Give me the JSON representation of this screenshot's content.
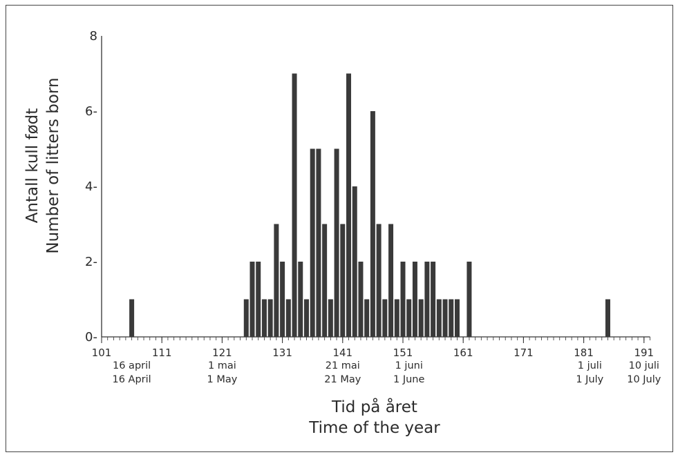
{
  "chart_data": {
    "type": "bar",
    "ylabel_lines": [
      "Antall kull født",
      "Number of litters born"
    ],
    "xlabel_lines": [
      "Tid på året",
      "Time of the year"
    ],
    "xlim": [
      101,
      192
    ],
    "ylim": [
      0,
      8
    ],
    "yticks": [
      "0-",
      "2-",
      "4-",
      "6-",
      "8"
    ],
    "ytick_values": [
      0,
      2,
      4,
      6,
      8
    ],
    "xticks": [
      "101",
      "111",
      "121",
      "131",
      "141",
      "151",
      "161",
      "171",
      "181",
      "191"
    ],
    "xtick_values": [
      101,
      111,
      121,
      131,
      141,
      151,
      161,
      171,
      181,
      191
    ],
    "date_labels": [
      {
        "day": 106,
        "line1": "16 april",
        "line2": "16 April"
      },
      {
        "day": 121,
        "line1": "1 mai",
        "line2": "1 May"
      },
      {
        "day": 141,
        "line1": "21 mai",
        "line2": "21 May"
      },
      {
        "day": 152,
        "line1": "1 juni",
        "line2": "1 June"
      },
      {
        "day": 182,
        "line1": "1 juli",
        "line2": "1 July"
      },
      {
        "day": 191,
        "line1": "10 juli",
        "line2": "10 July"
      }
    ],
    "x": [
      106,
      125,
      126,
      127,
      128,
      129,
      130,
      131,
      132,
      133,
      134,
      135,
      136,
      137,
      138,
      139,
      140,
      141,
      142,
      143,
      144,
      145,
      146,
      147,
      148,
      149,
      150,
      151,
      152,
      153,
      154,
      155,
      156,
      157,
      158,
      159,
      160,
      162,
      185
    ],
    "values": [
      1,
      1,
      2,
      2,
      1,
      1,
      3,
      2,
      1,
      7,
      2,
      1,
      5,
      5,
      3,
      1,
      5,
      3,
      7,
      4,
      2,
      1,
      6,
      3,
      1,
      3,
      1,
      2,
      1,
      2,
      1,
      2,
      2,
      1,
      1,
      1,
      1,
      2,
      1
    ],
    "bar_color": "#3a3a3a"
  }
}
